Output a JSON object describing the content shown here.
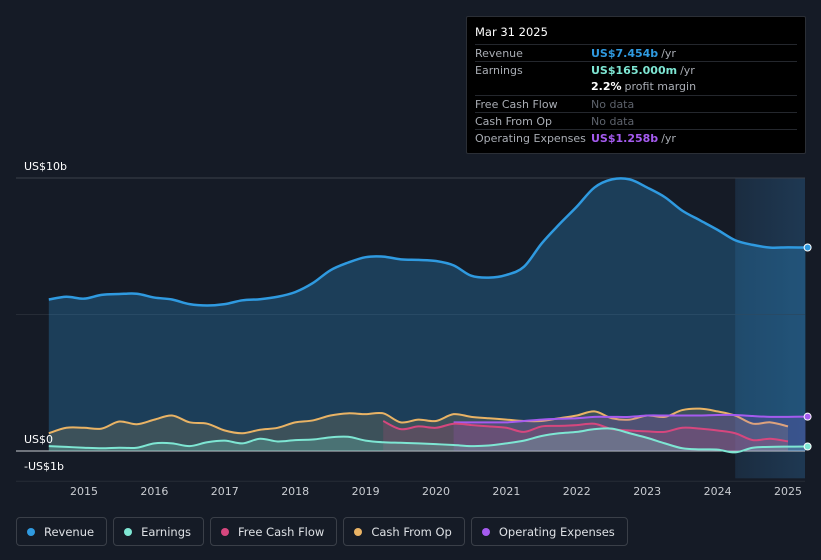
{
  "tooltip": {
    "date": "Mar 31 2025",
    "rows": [
      {
        "label": "Revenue",
        "value": "US$7.454b",
        "unit": "/yr",
        "color": "#2f9ae0"
      },
      {
        "label": "Earnings",
        "value": "US$165.000m",
        "unit": "/yr",
        "color": "#7ee6d3"
      },
      {
        "label": "",
        "value": "2.2%",
        "unit": "profit margin",
        "color": "#ffffff"
      },
      {
        "label": "Free Cash Flow",
        "value": "No data",
        "unit": "",
        "color": "#5d626b"
      },
      {
        "label": "Cash From Op",
        "value": "No data",
        "unit": "",
        "color": "#5d626b"
      },
      {
        "label": "Operating Expenses",
        "value": "US$1.258b",
        "unit": "/yr",
        "color": "#a55bef"
      }
    ]
  },
  "legend": [
    {
      "label": "Revenue",
      "color": "#2f9ae0"
    },
    {
      "label": "Earnings",
      "color": "#7ee6d3"
    },
    {
      "label": "Free Cash Flow",
      "color": "#d6477e"
    },
    {
      "label": "Cash From Op",
      "color": "#e9b365"
    },
    {
      "label": "Operating Expenses",
      "color": "#a55bef"
    }
  ],
  "chart_data": {
    "type": "area",
    "unit": "US$ billions",
    "ylim": [
      -1,
      10
    ],
    "y_tick_labels": [
      "US$10b",
      "US$0",
      "-US$1b"
    ],
    "x_tick_labels": [
      "2015",
      "2016",
      "2017",
      "2018",
      "2019",
      "2020",
      "2021",
      "2022",
      "2023",
      "2024",
      "2025"
    ],
    "highlight_start": 2024.25,
    "series": [
      {
        "name": "Revenue",
        "color": "#2f9ae0",
        "x": [
          2014.5,
          2014.75,
          2015.0,
          2015.25,
          2015.5,
          2015.75,
          2016.0,
          2016.25,
          2016.5,
          2016.75,
          2017.0,
          2017.25,
          2017.5,
          2017.75,
          2018.0,
          2018.25,
          2018.5,
          2018.75,
          2019.0,
          2019.25,
          2019.5,
          2019.75,
          2020.0,
          2020.25,
          2020.5,
          2020.75,
          2021.0,
          2021.25,
          2021.5,
          2021.75,
          2022.0,
          2022.25,
          2022.5,
          2022.75,
          2023.0,
          2023.25,
          2023.5,
          2023.75,
          2024.0,
          2024.25,
          2024.5,
          2024.75,
          2025.0,
          2025.25
        ],
        "values": [
          5.55,
          5.65,
          5.58,
          5.72,
          5.75,
          5.76,
          5.62,
          5.55,
          5.38,
          5.33,
          5.38,
          5.52,
          5.56,
          5.65,
          5.82,
          6.15,
          6.62,
          6.9,
          7.1,
          7.12,
          7.02,
          7.0,
          6.96,
          6.8,
          6.42,
          6.35,
          6.45,
          6.75,
          7.6,
          8.3,
          8.95,
          9.65,
          9.95,
          9.95,
          9.65,
          9.3,
          8.8,
          8.45,
          8.1,
          7.72,
          7.55,
          7.45,
          7.46,
          7.454
        ]
      },
      {
        "name": "Earnings",
        "color": "#7ee6d3",
        "x": [
          2014.5,
          2014.75,
          2015.0,
          2015.25,
          2015.5,
          2015.75,
          2016.0,
          2016.25,
          2016.5,
          2016.75,
          2017.0,
          2017.25,
          2017.5,
          2017.75,
          2018.0,
          2018.25,
          2018.5,
          2018.75,
          2019.0,
          2019.25,
          2019.5,
          2019.75,
          2020.0,
          2020.25,
          2020.5,
          2020.75,
          2021.0,
          2021.25,
          2021.5,
          2021.75,
          2022.0,
          2022.25,
          2022.5,
          2022.75,
          2023.0,
          2023.25,
          2023.5,
          2023.75,
          2024.0,
          2024.25,
          2024.5,
          2024.75,
          2025.0,
          2025.25
        ],
        "values": [
          0.18,
          0.15,
          0.12,
          0.1,
          0.12,
          0.12,
          0.28,
          0.28,
          0.18,
          0.32,
          0.38,
          0.28,
          0.45,
          0.35,
          0.4,
          0.42,
          0.5,
          0.52,
          0.38,
          0.32,
          0.3,
          0.28,
          0.25,
          0.22,
          0.18,
          0.2,
          0.28,
          0.38,
          0.55,
          0.65,
          0.7,
          0.8,
          0.82,
          0.65,
          0.48,
          0.28,
          0.1,
          0.06,
          0.05,
          -0.05,
          0.12,
          0.15,
          0.16,
          0.165
        ]
      },
      {
        "name": "Free Cash Flow",
        "color": "#d6477e",
        "x": [
          2019.25,
          2019.5,
          2019.75,
          2020.0,
          2020.25,
          2020.5,
          2020.75,
          2021.0,
          2021.25,
          2021.5,
          2021.75,
          2022.0,
          2022.25,
          2022.5,
          2022.75,
          2023.0,
          2023.25,
          2023.5,
          2023.75,
          2024.0,
          2024.25,
          2024.5,
          2024.75,
          2025.0
        ],
        "values": [
          1.1,
          0.8,
          0.9,
          0.85,
          1.0,
          0.95,
          0.9,
          0.85,
          0.7,
          0.9,
          0.92,
          0.95,
          1.0,
          0.8,
          0.75,
          0.72,
          0.7,
          0.85,
          0.82,
          0.75,
          0.65,
          0.4,
          0.45,
          0.35
        ]
      },
      {
        "name": "Cash From Op",
        "color": "#e9b365",
        "x": [
          2014.5,
          2014.75,
          2015.0,
          2015.25,
          2015.5,
          2015.75,
          2016.0,
          2016.25,
          2016.5,
          2016.75,
          2017.0,
          2017.25,
          2017.5,
          2017.75,
          2018.0,
          2018.25,
          2018.5,
          2018.75,
          2019.0,
          2019.25,
          2019.5,
          2019.75,
          2020.0,
          2020.25,
          2020.5,
          2020.75,
          2021.0,
          2021.25,
          2021.5,
          2021.75,
          2022.0,
          2022.25,
          2022.5,
          2022.75,
          2023.0,
          2023.25,
          2023.5,
          2023.75,
          2024.0,
          2024.25,
          2024.5,
          2024.75,
          2025.0
        ],
        "values": [
          0.65,
          0.85,
          0.85,
          0.82,
          1.08,
          0.98,
          1.15,
          1.3,
          1.05,
          1.0,
          0.75,
          0.65,
          0.78,
          0.85,
          1.05,
          1.12,
          1.3,
          1.38,
          1.35,
          1.38,
          1.05,
          1.15,
          1.1,
          1.35,
          1.25,
          1.2,
          1.15,
          1.1,
          1.1,
          1.2,
          1.3,
          1.45,
          1.2,
          1.15,
          1.3,
          1.25,
          1.5,
          1.55,
          1.45,
          1.3,
          1.0,
          1.05,
          0.9
        ]
      },
      {
        "name": "Operating Expenses",
        "color": "#a55bef",
        "x": [
          2020.25,
          2020.5,
          2020.75,
          2021.0,
          2021.25,
          2021.5,
          2021.75,
          2022.0,
          2022.25,
          2022.5,
          2022.75,
          2023.0,
          2023.25,
          2023.5,
          2023.75,
          2024.0,
          2024.25,
          2024.5,
          2024.75,
          2025.0,
          2025.25
        ],
        "values": [
          1.05,
          1.05,
          1.05,
          1.05,
          1.1,
          1.15,
          1.18,
          1.2,
          1.25,
          1.25,
          1.25,
          1.3,
          1.3,
          1.3,
          1.3,
          1.32,
          1.32,
          1.28,
          1.25,
          1.25,
          1.258
        ]
      }
    ]
  }
}
